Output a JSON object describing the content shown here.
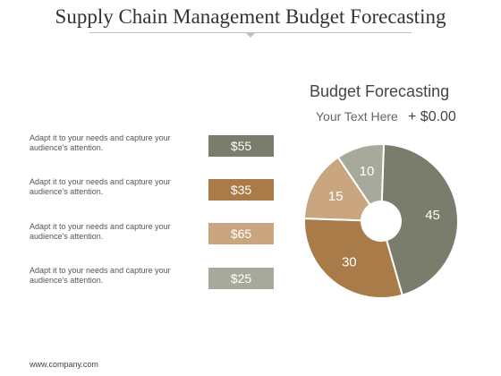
{
  "slide": {
    "title": "Supply Chain Management Budget Forecasting",
    "footer": "www.company.com"
  },
  "rows": [
    {
      "text": "Adapt it to your needs and capture your audience's attention.",
      "amount": "$55",
      "color": "#7a7d6c"
    },
    {
      "text": "Adapt it to your needs and capture your audience's attention.",
      "amount": "$35",
      "color": "#a87b48"
    },
    {
      "text": "Adapt it to your needs and capture your audience's attention.",
      "amount": "$65",
      "color": "#c9a67f"
    },
    {
      "text": "Adapt it to your needs and capture your audience's attention.",
      "amount": "$25",
      "color": "#a7aa9a"
    }
  ],
  "chart_title": "Budget Forecasting",
  "chart_subtitle": "Your Text Here",
  "chart_amount": "+ $0.00",
  "chart_data": {
    "type": "pie",
    "donut": true,
    "title": "Budget Forecasting",
    "slices": [
      {
        "label": "45",
        "value": 45,
        "color": "#7a7d6c"
      },
      {
        "label": "30",
        "value": 30,
        "color": "#a87b48"
      },
      {
        "label": "15",
        "value": 15,
        "color": "#c9a67f"
      },
      {
        "label": "10",
        "value": 10,
        "color": "#a7aa9a"
      }
    ]
  }
}
